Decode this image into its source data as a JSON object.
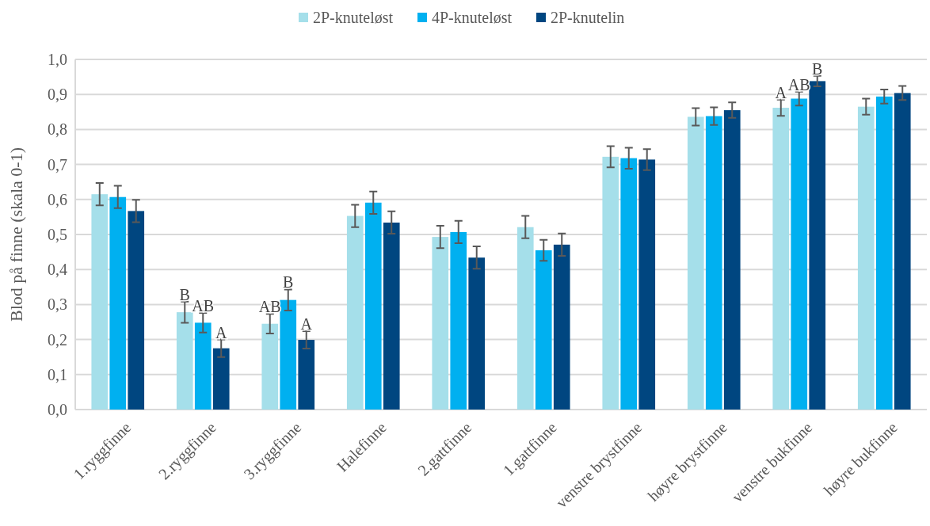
{
  "chart_data": {
    "type": "bar",
    "ylabel": "Blod på finne (skala 0-1)",
    "legend": "top",
    "grid": "y",
    "categories": [
      "1.ryggfinne",
      "2.ryggfinne",
      "3.ryggfinne",
      "Halefinne",
      "2.gattfinne",
      "1.gattfinne",
      "venstre brystfinne",
      "høyre brystfinne",
      "venstre bukfinne",
      "høyre bukfinne"
    ],
    "series": [
      {
        "name": "2P-knuteløst",
        "color": "#a5dfea",
        "values": [
          0.615,
          0.278,
          0.245,
          0.553,
          0.493,
          0.521,
          0.722,
          0.836,
          0.862,
          0.865
        ],
        "errors": [
          0.032,
          0.03,
          0.028,
          0.032,
          0.032,
          0.032,
          0.03,
          0.025,
          0.023,
          0.023
        ],
        "value_labels": [
          null,
          "B",
          "AB",
          null,
          null,
          null,
          null,
          null,
          "A",
          null
        ]
      },
      {
        "name": "4P-knuteløst",
        "color": "#00b0f0",
        "values": [
          0.607,
          0.248,
          0.313,
          0.591,
          0.507,
          0.455,
          0.718,
          0.838,
          0.888,
          0.894
        ],
        "errors": [
          0.032,
          0.028,
          0.03,
          0.032,
          0.032,
          0.03,
          0.03,
          0.025,
          0.02,
          0.02
        ],
        "value_labels": [
          null,
          "AB",
          "B",
          null,
          null,
          null,
          null,
          null,
          "AB",
          null
        ]
      },
      {
        "name": "2P-knutelin",
        "color": "#004680",
        "values": [
          0.567,
          0.175,
          0.199,
          0.534,
          0.434,
          0.471,
          0.714,
          0.855,
          0.938,
          0.904
        ],
        "errors": [
          0.032,
          0.025,
          0.025,
          0.032,
          0.032,
          0.032,
          0.03,
          0.022,
          0.015,
          0.02
        ],
        "value_labels": [
          null,
          "A",
          "A",
          null,
          null,
          null,
          null,
          null,
          "B",
          null
        ]
      }
    ],
    "ylim": [
      0,
      1
    ],
    "yticks": [
      {
        "value": 0,
        "label": "0,0"
      },
      {
        "value": 0.1,
        "label": "0,1"
      },
      {
        "value": 0.2,
        "label": "0,2"
      },
      {
        "value": 0.3,
        "label": "0,3"
      },
      {
        "value": 0.4,
        "label": "0,4"
      },
      {
        "value": 0.5,
        "label": "0,5"
      },
      {
        "value": 0.6,
        "label": "0,6"
      },
      {
        "value": 0.7,
        "label": "0,7"
      },
      {
        "value": 0.8,
        "label": "0,8"
      },
      {
        "value": 0.9,
        "label": "0,9"
      },
      {
        "value": 1,
        "label": "1,0"
      }
    ]
  }
}
